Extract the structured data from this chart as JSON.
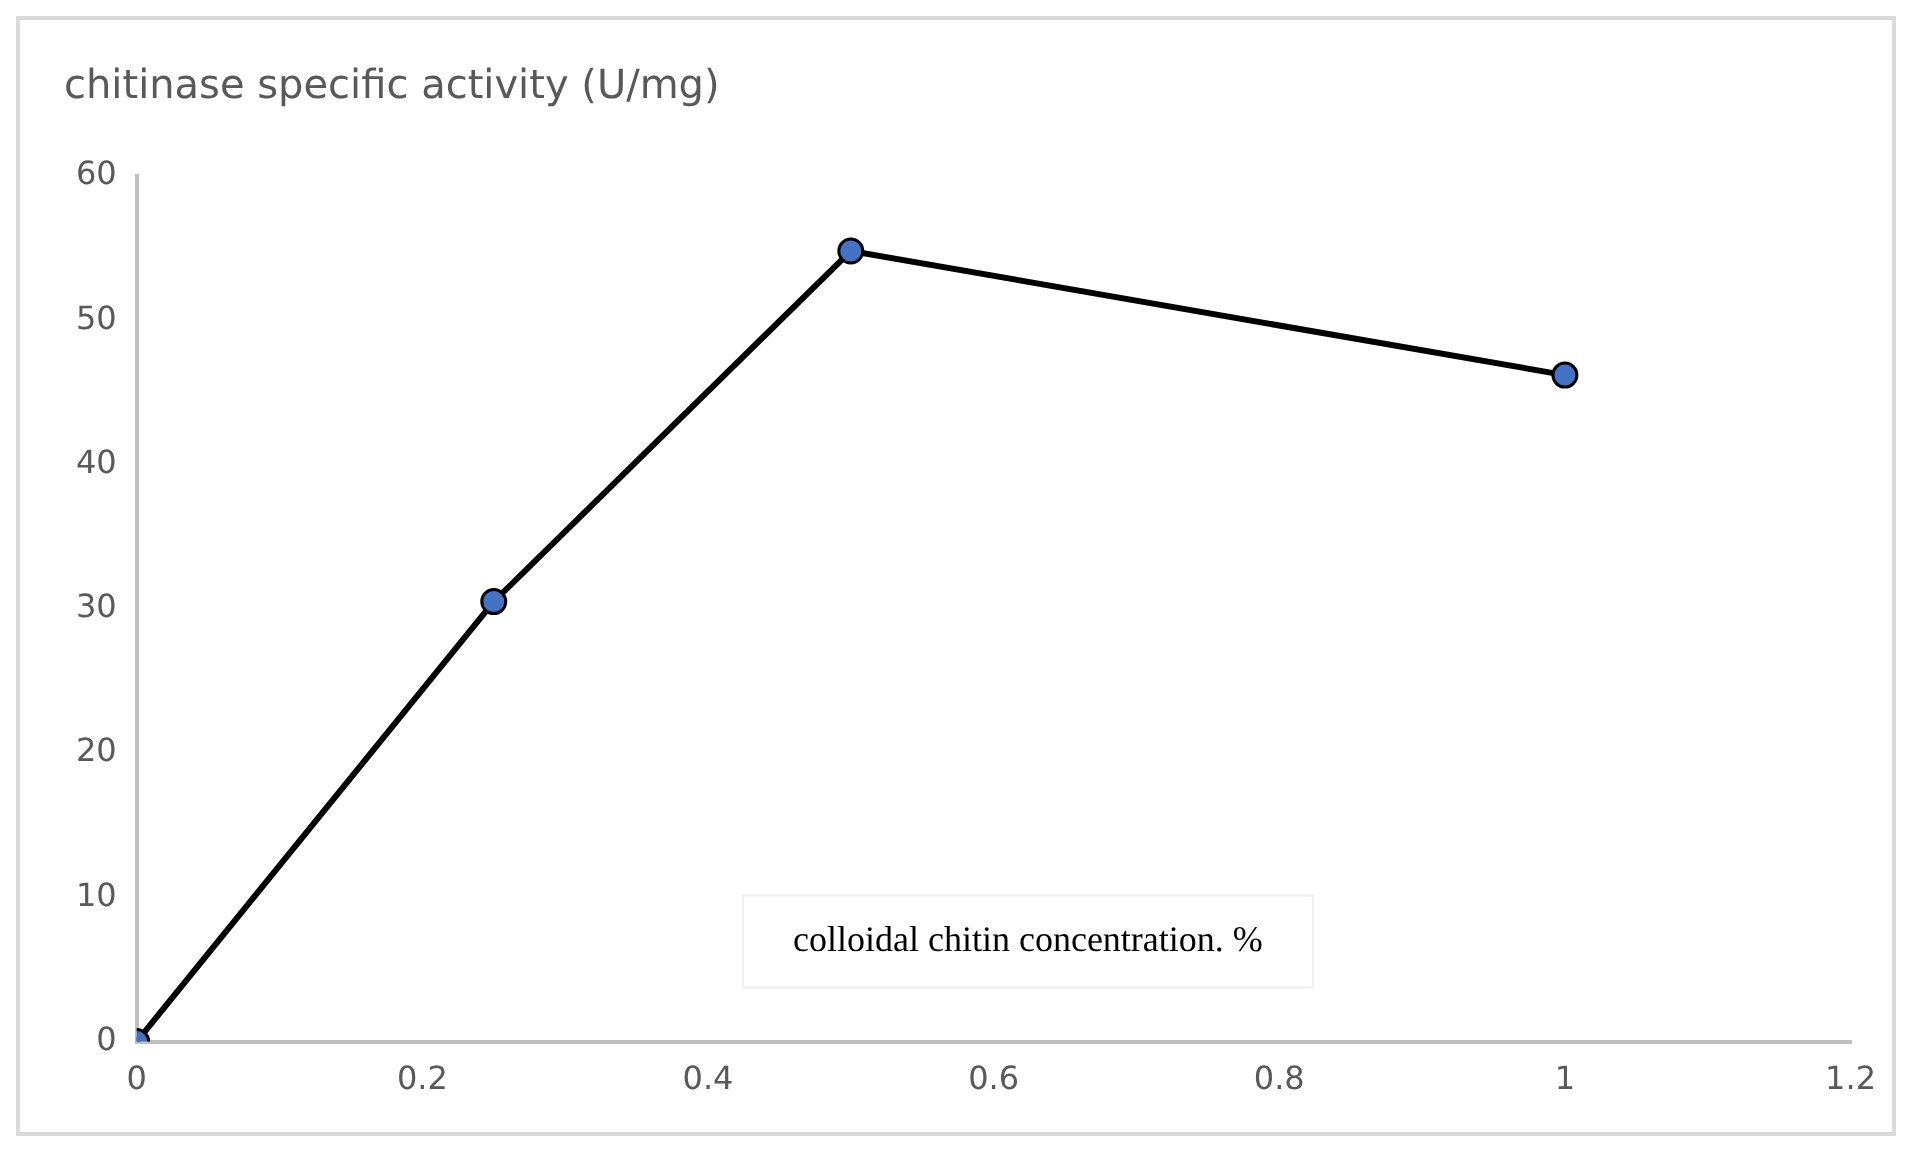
{
  "chart_data": {
    "type": "line",
    "ylabel": "chitinase specific activity (U/mg)",
    "xlabel": "colloidal chitin concentration. %",
    "x": [
      0,
      0.25,
      0.5,
      1
    ],
    "series": [
      {
        "color": "#4472c4",
        "values": [
          0,
          30.5,
          54.8,
          46.2
        ]
      }
    ],
    "xlim": [
      0,
      1.2
    ],
    "xticks": [
      0,
      {
        "value": 0.2,
        "label": "0.2"
      },
      {
        "value": 0.4,
        "label": "0.4"
      },
      {
        "value": 0.6,
        "label": "0.6"
      },
      {
        "value": 0.8,
        "label": "0.8"
      },
      1,
      {
        "value": 1.2,
        "label": "1.2"
      }
    ],
    "ylim": [
      0,
      60
    ],
    "yticks": [
      0,
      10,
      20,
      30,
      40,
      50,
      60
    ],
    "grid": false,
    "legend": false,
    "marker": "circle",
    "line_style": "solid"
  }
}
